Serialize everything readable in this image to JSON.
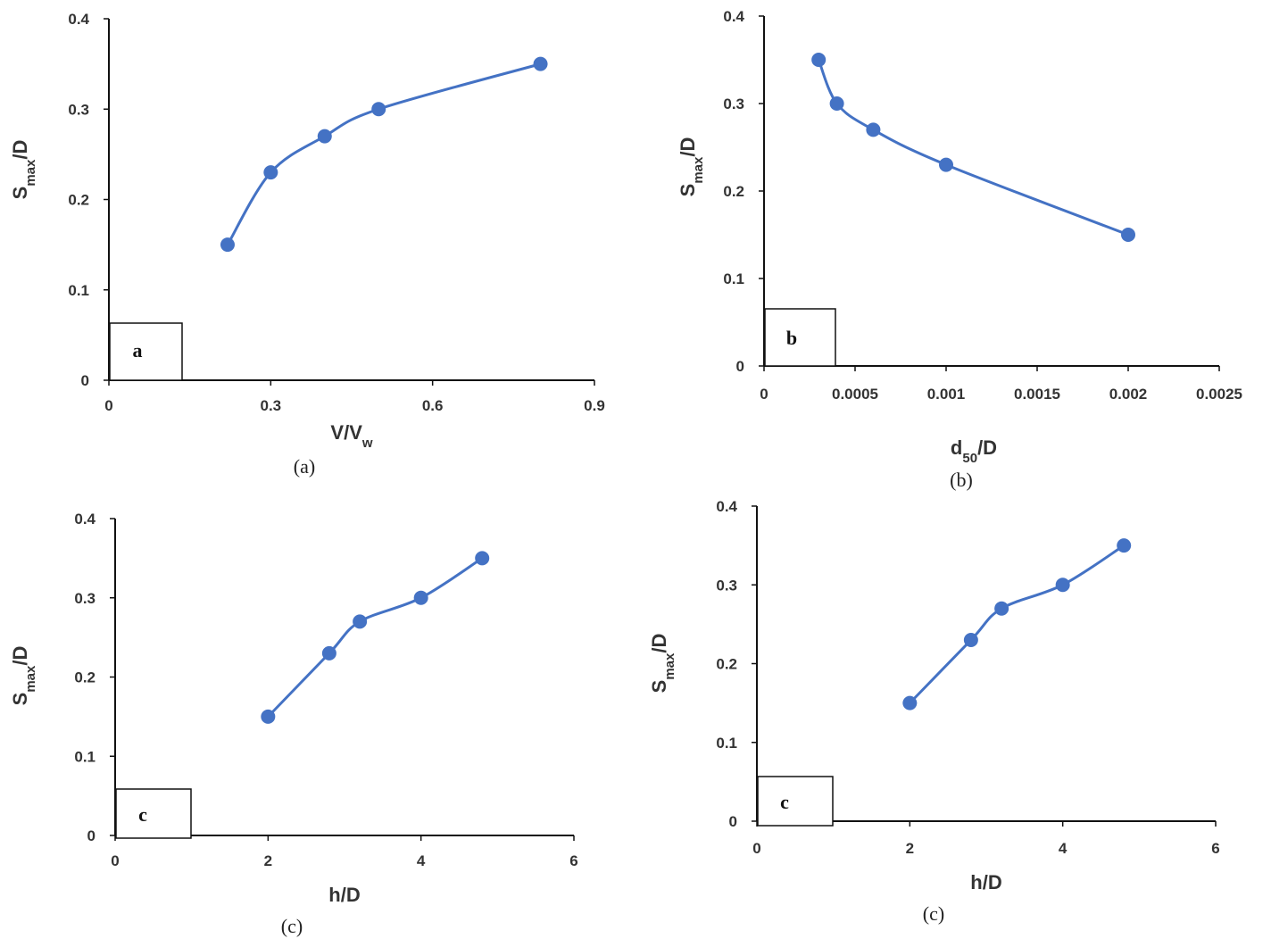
{
  "colors": {
    "series": "#4472C4",
    "axis": "#111111",
    "text": "#333333"
  },
  "chart_data": [
    {
      "type": "line",
      "panel_tag": "a",
      "caption": "(a)",
      "xlabel": {
        "main": "V/V",
        "sub": "w",
        "after": ""
      },
      "ylabel": {
        "main": "S",
        "sub": "max",
        "after": "/D"
      },
      "xlim": [
        0,
        0.9
      ],
      "ylim": [
        0,
        0.4
      ],
      "x_ticks": [
        "0",
        "0.3",
        "0.6",
        "0.9"
      ],
      "y_ticks": [
        "0",
        "0.1",
        "0.2",
        "0.3",
        "0.4"
      ],
      "series": [
        {
          "x": [
            0.22,
            0.3,
            0.4,
            0.5,
            0.8
          ],
          "y": [
            0.15,
            0.23,
            0.27,
            0.3,
            0.35
          ]
        }
      ]
    },
    {
      "type": "line",
      "panel_tag": "b",
      "caption": "(b)",
      "xlabel": {
        "main": "d",
        "sub": "50",
        "after": "/D"
      },
      "ylabel": {
        "main": "S",
        "sub": "max",
        "after": "/D"
      },
      "xlim": [
        0,
        0.0025
      ],
      "ylim": [
        0,
        0.4
      ],
      "x_ticks": [
        "0",
        "0.0005",
        "0.001",
        "0.0015",
        "0.002",
        "0.0025"
      ],
      "y_ticks": [
        "0",
        "0.1",
        "0.2",
        "0.3",
        "0.4"
      ],
      "series": [
        {
          "x": [
            0.0003,
            0.0004,
            0.0006,
            0.001,
            0.002
          ],
          "y": [
            0.35,
            0.3,
            0.27,
            0.23,
            0.15
          ]
        }
      ]
    },
    {
      "type": "line",
      "panel_tag": "c",
      "caption": "(c)",
      "xlabel": {
        "main": "h/D",
        "sub": "",
        "after": ""
      },
      "ylabel": {
        "main": "S",
        "sub": "max",
        "after": "/D"
      },
      "xlim": [
        0,
        6
      ],
      "ylim": [
        0,
        0.4
      ],
      "x_ticks": [
        "0",
        "2",
        "4",
        "6"
      ],
      "y_ticks": [
        "0",
        "0.1",
        "0.2",
        "0.3",
        "0.4"
      ],
      "series": [
        {
          "x": [
            2,
            2.8,
            3.2,
            4,
            4.8
          ],
          "y": [
            0.15,
            0.23,
            0.27,
            0.3,
            0.35
          ]
        }
      ]
    },
    {
      "type": "line",
      "panel_tag": "c",
      "caption": "(c)",
      "xlabel": {
        "main": "h/D",
        "sub": "",
        "after": ""
      },
      "ylabel": {
        "main": "S",
        "sub": "max",
        "after": "/D"
      },
      "xlim": [
        0,
        6
      ],
      "ylim": [
        0,
        0.4
      ],
      "x_ticks": [
        "0",
        "2",
        "4",
        "6"
      ],
      "y_ticks": [
        "0",
        "0.1",
        "0.2",
        "0.3",
        "0.4"
      ],
      "series": [
        {
          "x": [
            2,
            2.8,
            3.2,
            4,
            4.8
          ],
          "y": [
            0.15,
            0.23,
            0.27,
            0.3,
            0.35
          ]
        }
      ]
    }
  ]
}
